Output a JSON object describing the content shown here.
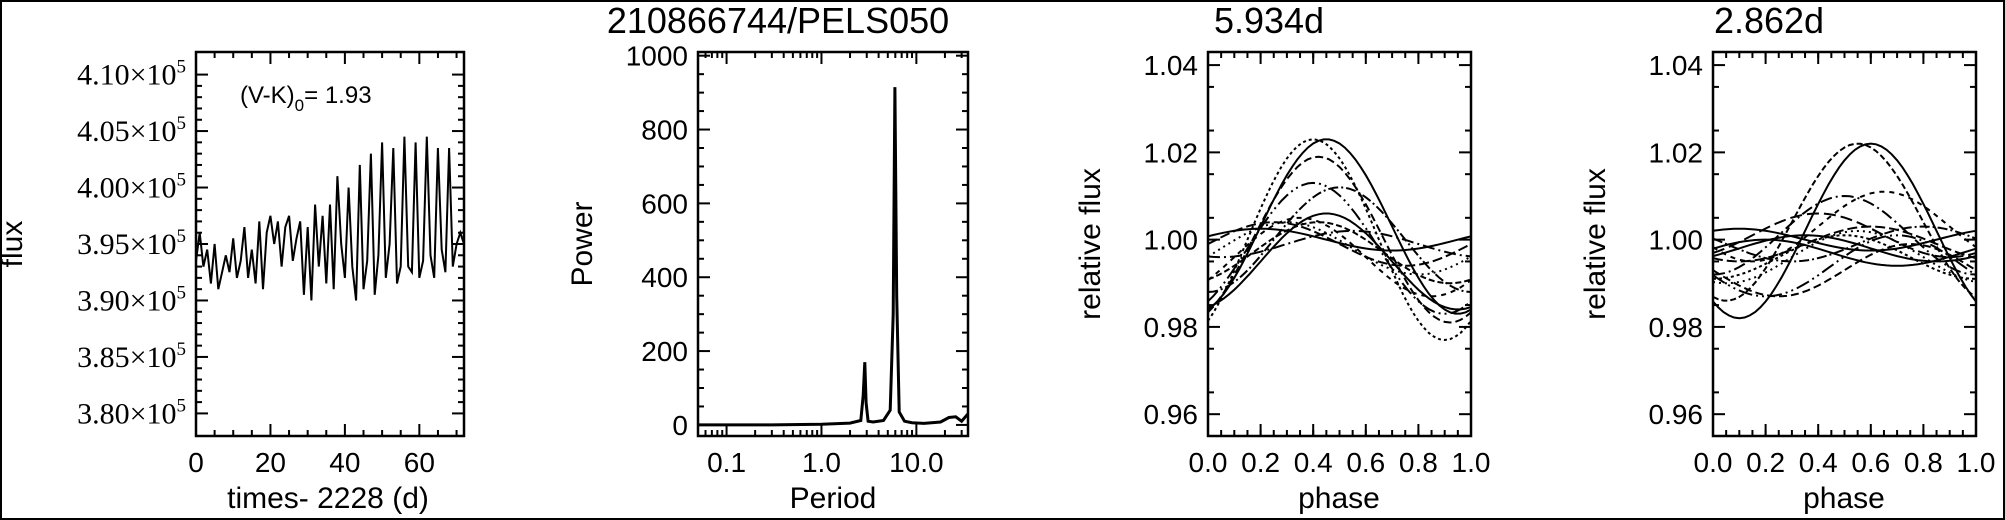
{
  "title": "210866744/PELS050",
  "chart_data": [
    {
      "type": "line",
      "name": "lightcurve",
      "ylabel": "flux",
      "xlabel": "times- 2228 (d)",
      "annotation": "(V-K)",
      "annotation_sub": "0",
      "annotation_value": "= 1.93",
      "xlim": [
        0,
        72
      ],
      "ylim": [
        378000,
        412000
      ],
      "xticks": [
        0,
        20,
        40,
        60
      ],
      "yticks": [
        380000,
        385000,
        390000,
        395000,
        400000,
        405000,
        410000
      ],
      "ytick_mantissas": [
        "3.80",
        "3.85",
        "3.90",
        "3.95",
        "4.00",
        "4.05",
        "4.10"
      ],
      "ytick_suffix": "×10",
      "ytick_exponent": "5",
      "x": [
        0,
        1,
        2,
        3,
        4,
        5,
        6,
        7,
        8,
        9,
        10,
        11,
        12,
        13,
        14,
        15,
        16,
        17,
        18,
        19,
        20,
        21,
        22,
        23,
        24,
        25,
        26,
        27,
        28,
        29,
        30,
        31,
        32,
        33,
        34,
        35,
        36,
        37,
        38,
        39,
        40,
        41,
        42,
        43,
        44,
        45,
        46,
        47,
        48,
        49,
        50,
        51,
        52,
        53,
        54,
        55,
        56,
        57,
        58,
        59,
        60,
        61,
        62,
        63,
        64,
        65,
        66,
        67,
        68,
        69,
        70,
        71,
        72
      ],
      "y": [
        393500,
        396000,
        393000,
        394500,
        391500,
        395000,
        391000,
        392500,
        394000,
        392500,
        395500,
        392000,
        393500,
        396500,
        392000,
        394500,
        391500,
        397000,
        391000,
        396000,
        397500,
        395000,
        397000,
        393000,
        396500,
        397500,
        393500,
        395500,
        397000,
        390500,
        396500,
        390000,
        398500,
        393000,
        397500,
        391500,
        398500,
        391000,
        401000,
        395000,
        392000,
        400000,
        393000,
        390000,
        402000,
        391000,
        393500,
        403000,
        390500,
        394000,
        404000,
        392000,
        395000,
        403500,
        391500,
        393000,
        404500,
        393000,
        392500,
        404000,
        392000,
        393500,
        404500,
        394000,
        392000,
        403500,
        394500,
        392500,
        403500,
        393000,
        395000,
        396000,
        395000
      ]
    },
    {
      "type": "line",
      "name": "periodogram",
      "xscale": "log",
      "xlabel": "Period",
      "ylabel": "Power",
      "xlim": [
        0.05,
        35
      ],
      "ylim": [
        -30,
        1010
      ],
      "xticks": [
        0.1,
        1.0,
        10.0
      ],
      "xtick_labels": [
        "0.1",
        "1.0",
        "10.0"
      ],
      "yticks": [
        0,
        200,
        400,
        600,
        800,
        1000
      ],
      "peaks": [
        {
          "period": 2.862,
          "power": 170
        },
        {
          "period": 5.934,
          "power": 915
        }
      ],
      "x": [
        0.05,
        0.1,
        0.3,
        1.0,
        2.0,
        2.6,
        2.75,
        2.862,
        2.95,
        3.1,
        3.5,
        4.5,
        5.3,
        5.7,
        5.934,
        6.2,
        6.6,
        7.5,
        9,
        12,
        18,
        22,
        26,
        30,
        35
      ],
      "y": [
        0,
        0,
        0,
        2,
        5,
        12,
        80,
        170,
        60,
        10,
        8,
        12,
        40,
        300,
        915,
        350,
        35,
        10,
        6,
        4,
        8,
        20,
        22,
        10,
        30
      ]
    },
    {
      "type": "line",
      "name": "phase-folded-5.934d",
      "title": "5.934d",
      "xlabel": "phase",
      "ylabel": "relative flux",
      "xlim": [
        0,
        1
      ],
      "ylim": [
        0.955,
        1.043
      ],
      "xticks": [
        0.0,
        0.2,
        0.4,
        0.6,
        0.8,
        1.0
      ],
      "xtick_labels": [
        "0.0",
        "0.2",
        "0.4",
        "0.6",
        "0.8",
        "1.0"
      ],
      "yticks": [
        0.96,
        0.98,
        1.0,
        1.02,
        1.04
      ],
      "ytick_labels": [
        "0.96",
        "0.98",
        "1.00",
        "1.02",
        "1.04"
      ],
      "series": [
        {
          "mean": 1.0,
          "amp": 0.0025,
          "peak": 0.2
        },
        {
          "mean": 0.999,
          "amp": 0.005,
          "peak": 0.25
        },
        {
          "mean": 0.998,
          "amp": 0.006,
          "peak": 0.3
        },
        {
          "mean": 0.999,
          "amp": 0.003,
          "peak": 0.55
        },
        {
          "mean": 0.997,
          "amp": 0.007,
          "peak": 0.42
        },
        {
          "mean": 0.995,
          "amp": 0.011,
          "peak": 0.45
        },
        {
          "mean": 0.998,
          "amp": 0.015,
          "peak": 0.4
        },
        {
          "mean": 1.0,
          "amp": 0.019,
          "peak": 0.42
        },
        {
          "mean": 1.0,
          "amp": 0.023,
          "peak": 0.4
        },
        {
          "mean": 1.003,
          "amp": 0.02,
          "peak": 0.45
        },
        {
          "mean": 1.0,
          "amp": 0.012,
          "peak": 0.5
        },
        {
          "mean": 0.996,
          "amp": 0.009,
          "peak": 0.35
        }
      ]
    },
    {
      "type": "line",
      "name": "phase-folded-2.862d",
      "title": "2.862d",
      "xlabel": "phase",
      "ylabel": "relative flux",
      "xlim": [
        0,
        1
      ],
      "ylim": [
        0.955,
        1.043
      ],
      "xticks": [
        0.0,
        0.2,
        0.4,
        0.6,
        0.8,
        1.0
      ],
      "xtick_labels": [
        "0.0",
        "0.2",
        "0.4",
        "0.6",
        "0.8",
        "1.0"
      ],
      "yticks": [
        0.96,
        0.98,
        1.0,
        1.02,
        1.04
      ],
      "ytick_labels": [
        "0.96",
        "0.98",
        "1.00",
        "1.02",
        "1.04"
      ],
      "series": [
        {
          "mean": 1.0,
          "amp": 0.0025,
          "peak": 0.1
        },
        {
          "mean": 0.999,
          "amp": 0.004,
          "peak": 0.6
        },
        {
          "mean": 0.996,
          "amp": 0.006,
          "peak": 0.55
        },
        {
          "mean": 1.001,
          "amp": 0.009,
          "peak": 0.5
        },
        {
          "mean": 1.004,
          "amp": 0.018,
          "peak": 0.55
        },
        {
          "mean": 1.002,
          "amp": 0.02,
          "peak": 0.6
        },
        {
          "mean": 0.994,
          "amp": 0.007,
          "peak": 0.7
        },
        {
          "mean": 0.993,
          "amp": 0.006,
          "peak": 0.75
        },
        {
          "mean": 0.996,
          "amp": 0.005,
          "peak": 0.5
        },
        {
          "mean": 0.998,
          "amp": 0.003,
          "peak": 0.35
        },
        {
          "mean": 0.999,
          "amp": 0.004,
          "peak": 0.8
        },
        {
          "mean": 1.003,
          "amp": 0.008,
          "peak": 0.65
        },
        {
          "mean": 0.997,
          "amp": 0.003,
          "peak": 0.2
        },
        {
          "mean": 1.001,
          "amp": 0.005,
          "peak": 0.4
        }
      ]
    }
  ]
}
